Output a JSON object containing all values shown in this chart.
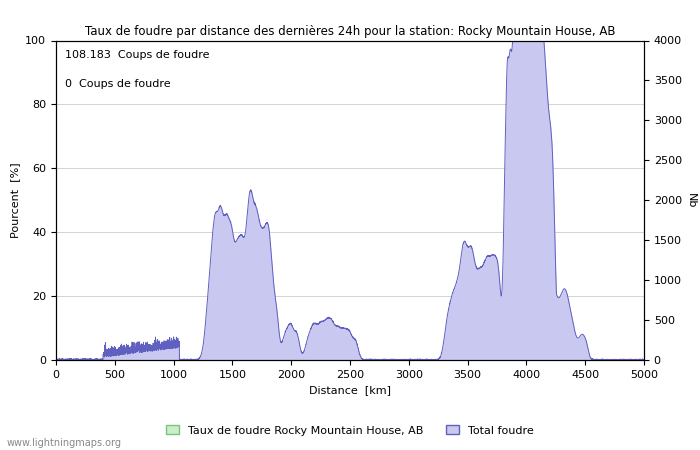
{
  "title": "Taux de foudre par distance des dernières 24h pour la station: Rocky Mountain House, AB",
  "xlabel": "Distance  [km]",
  "ylabel_left": "Pourcent  [%]",
  "ylabel_right": "Nb",
  "annotation1": "108.183  Coups de foudre",
  "annotation2": "0  Coups de foudre",
  "legend1": "Taux de foudre Rocky Mountain House, AB",
  "legend2": "Total foudre",
  "watermark": "www.lightningmaps.org",
  "xlim": [
    0,
    5000
  ],
  "ylim_left": [
    0,
    100
  ],
  "ylim_right": [
    0,
    4000
  ],
  "color_fill": "#c8c8f0",
  "color_line": "#6060c0",
  "color_green_fill": "#c8f0c8",
  "color_green_edge": "#80c080",
  "x_ticks": [
    0,
    500,
    1000,
    1500,
    2000,
    2500,
    3000,
    3500,
    4000,
    4500,
    5000
  ],
  "y_ticks_left": [
    0,
    20,
    40,
    60,
    80,
    100
  ],
  "y_ticks_right": [
    0,
    500,
    1000,
    1500,
    2000,
    2500,
    3000,
    3500,
    4000
  ]
}
